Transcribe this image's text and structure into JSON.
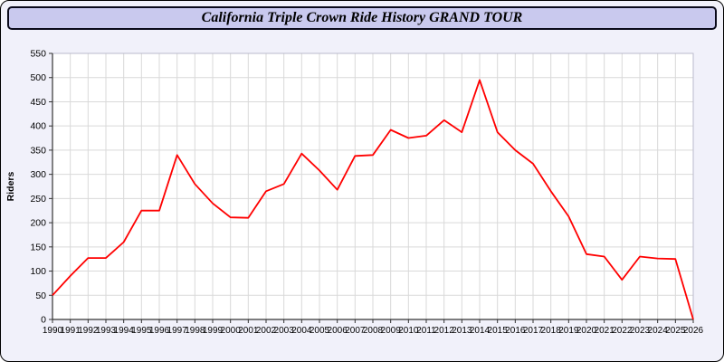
{
  "title": "California Triple Crown Ride History GRAND TOUR",
  "chart_data": {
    "type": "line",
    "title": "California Triple Crown Ride History GRAND TOUR",
    "xlabel": "",
    "ylabel": "Riders",
    "x": [
      1990,
      1991,
      1992,
      1993,
      1994,
      1995,
      1996,
      1997,
      1998,
      1999,
      2000,
      2001,
      2002,
      2003,
      2004,
      2005,
      2006,
      2007,
      2008,
      2009,
      2010,
      2011,
      2012,
      2013,
      2014,
      2015,
      2016,
      2017,
      2018,
      2019,
      2020,
      2021,
      2022,
      2023,
      2024,
      2025,
      2026
    ],
    "values": [
      50,
      90,
      127,
      127,
      160,
      225,
      225,
      340,
      280,
      240,
      211,
      210,
      265,
      280,
      343,
      308,
      268,
      338,
      340,
      392,
      375,
      380,
      412,
      387,
      495,
      387,
      350,
      322,
      265,
      213,
      135,
      130,
      82,
      130,
      126,
      125,
      0
    ],
    "ylim": [
      0,
      550
    ],
    "ytick_step": 50,
    "line_color": "#ff0000",
    "grid": true,
    "legend": "none",
    "plot_background": "#ffffff",
    "grid_color": "#d9d9d9",
    "axis_color": "#333333"
  }
}
